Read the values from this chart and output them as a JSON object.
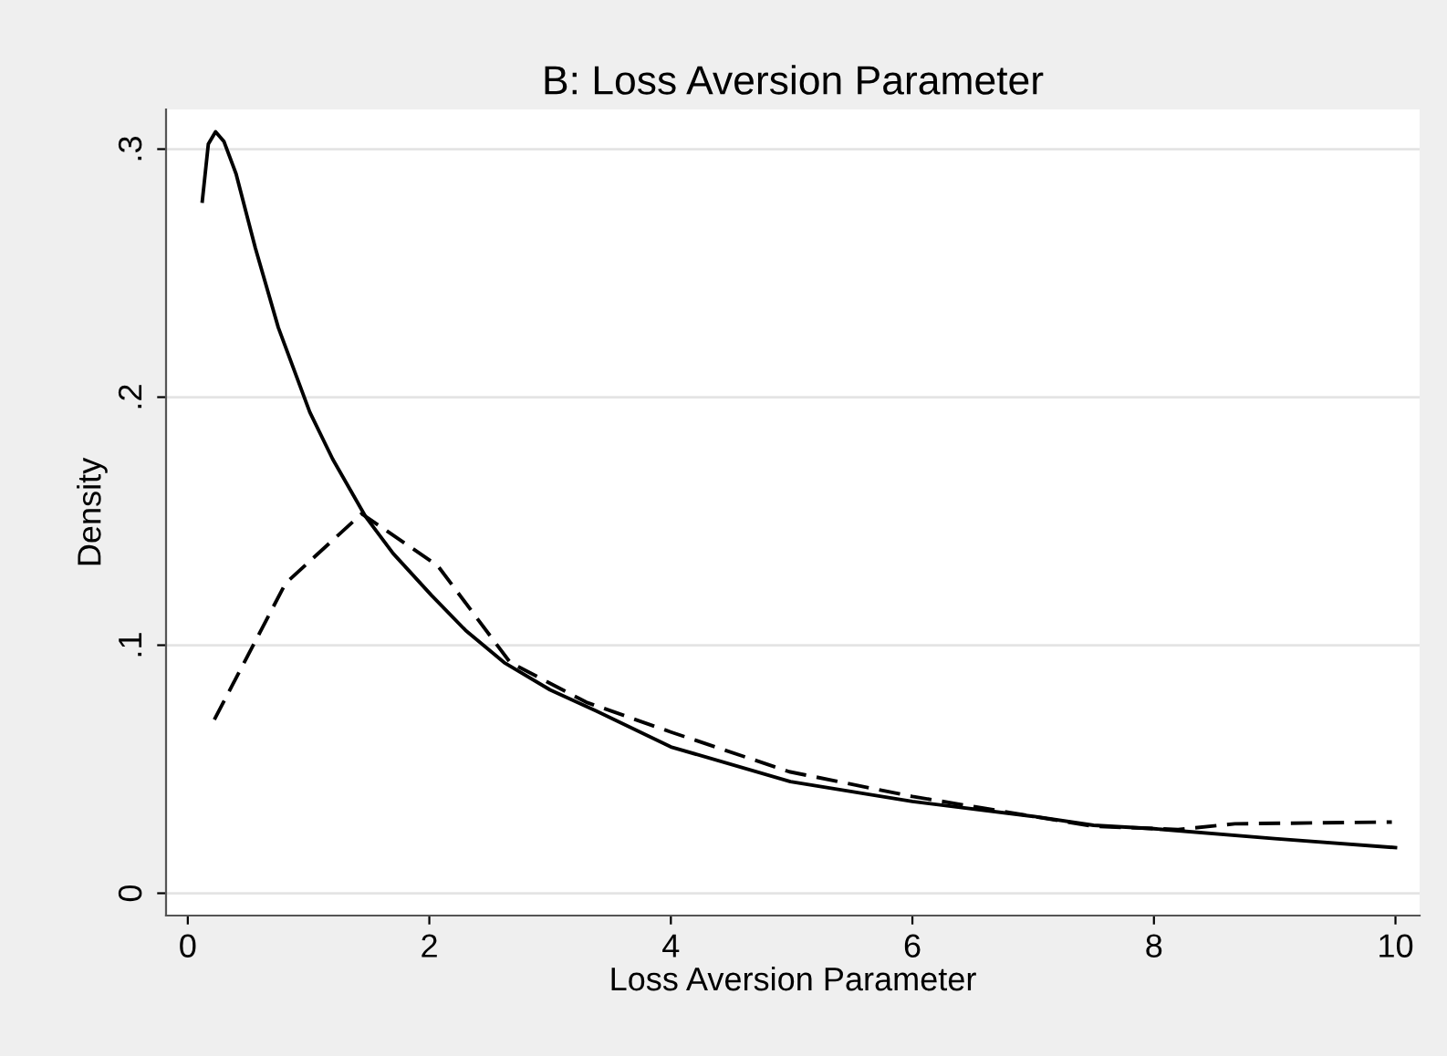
{
  "chart_data": {
    "type": "line",
    "title": "B: Loss Aversion Parameter",
    "xlabel": "Loss Aversion Parameter",
    "ylabel": "Density",
    "xlim": [
      -0.18,
      10.2
    ],
    "ylim": [
      -0.009,
      0.316
    ],
    "xticks": [
      0,
      2,
      4,
      6,
      8,
      10
    ],
    "yticks": [
      {
        "value": 0,
        "label": "0"
      },
      {
        "value": 0.1,
        "label": ".1"
      },
      {
        "value": 0.2,
        "label": ".2"
      },
      {
        "value": 0.3,
        "label": ".3"
      }
    ],
    "grid": "y",
    "series": [
      {
        "color": "#000000",
        "line_style": "solid",
        "x": [
          0.12,
          0.17,
          0.23,
          0.3,
          0.4,
          0.56,
          0.75,
          1.01,
          1.2,
          1.47,
          1.7,
          2.02,
          2.3,
          2.62,
          3.0,
          3.38,
          4.0,
          4.99,
          6.0,
          7.0,
          7.5,
          8.0,
          9.0,
          10.0
        ],
        "values": [
          0.279,
          0.302,
          0.307,
          0.303,
          0.29,
          0.26,
          0.228,
          0.194,
          0.175,
          0.152,
          0.137,
          0.12,
          0.106,
          0.093,
          0.082,
          0.0735,
          0.059,
          0.045,
          0.037,
          0.031,
          0.0274,
          0.026,
          0.022,
          0.0184
        ]
      },
      {
        "color": "#000000",
        "line_style": "dashed",
        "x": [
          0.22,
          0.81,
          1.44,
          2.07,
          2.67,
          3.3,
          4.0,
          4.98,
          6.0,
          7.0,
          7.5,
          8.2,
          8.67,
          9.97
        ],
        "values": [
          0.07,
          0.125,
          0.153,
          0.132,
          0.093,
          0.077,
          0.065,
          0.049,
          0.039,
          0.031,
          0.027,
          0.0257,
          0.028,
          0.0287
        ]
      }
    ]
  }
}
